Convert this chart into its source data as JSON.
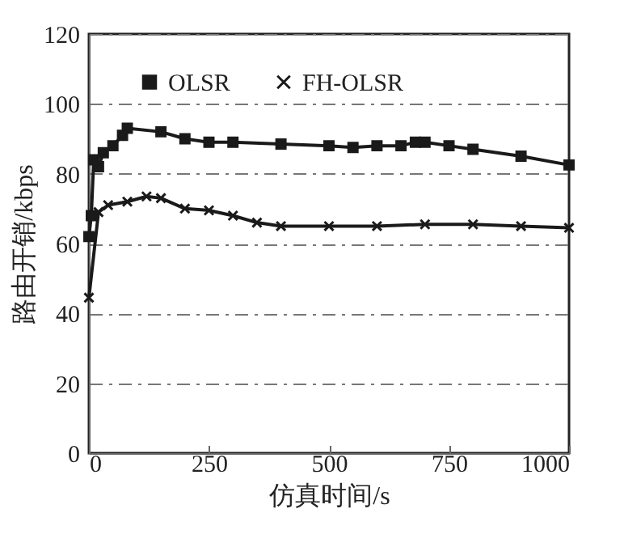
{
  "chart_data": {
    "type": "line",
    "xlabel": "仿真时间/s",
    "ylabel": "路由开销/kbps",
    "xlim": [
      0,
      1000
    ],
    "xticks": [
      0,
      250,
      500,
      750,
      1000
    ],
    "ylim": [
      0,
      120
    ],
    "yticks": [
      0,
      20,
      40,
      60,
      80,
      100,
      120
    ],
    "grid": "y",
    "legend": "top",
    "line_style": "solid",
    "series": [
      {
        "name": "OLSR",
        "color": "#1a1a1a",
        "marker": "square",
        "x": [
          0,
          5,
          10,
          20,
          30,
          50,
          70,
          80,
          150,
          200,
          250,
          300,
          400,
          500,
          550,
          600,
          650,
          680,
          700,
          750,
          800,
          900,
          1000
        ],
        "values": [
          62,
          68,
          84,
          82,
          86,
          88,
          91,
          93,
          92,
          90,
          89,
          89,
          88.5,
          88,
          87.5,
          88,
          88,
          89,
          89,
          88,
          87,
          85,
          82.5
        ]
      },
      {
        "name": "FH-OLSR",
        "color": "#1a1a1a",
        "marker": "cross",
        "x": [
          0,
          20,
          40,
          80,
          120,
          150,
          200,
          250,
          300,
          350,
          400,
          500,
          600,
          700,
          800,
          900,
          1000
        ],
        "values": [
          44.5,
          69,
          71,
          72,
          73.5,
          73,
          70,
          69.5,
          68,
          66,
          65,
          65,
          65,
          65.5,
          65.5,
          65,
          64.5
        ]
      }
    ]
  }
}
